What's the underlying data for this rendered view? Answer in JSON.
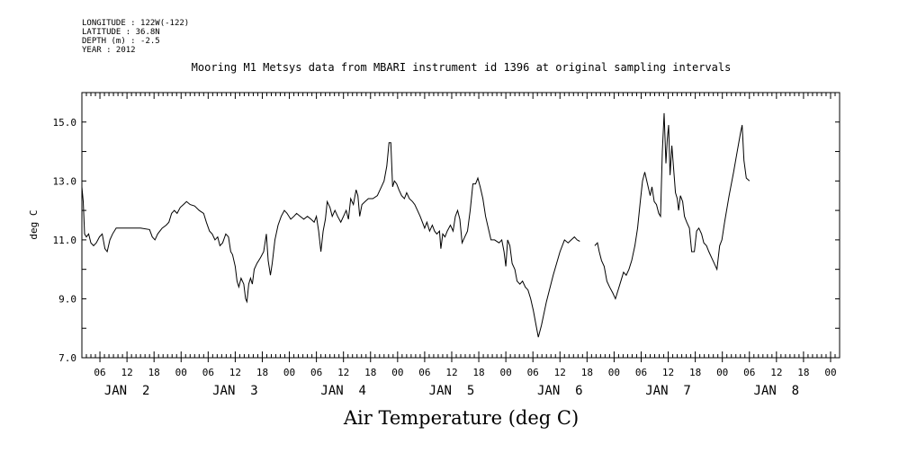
{
  "meta": {
    "longitude": "LONGITUDE : 122W(-122)",
    "latitude": "LATITUDE : 36.8N",
    "depth": "DEPTH (m) : -2.5",
    "year": "YEAR : 2012"
  },
  "chart_data": {
    "type": "line",
    "title": "Mooring M1 Metsys data from MBARI instrument id 1396 at original sampling intervals",
    "xlabel": "Air Temperature (deg C)",
    "ylabel": "deg C",
    "ylim": [
      7.0,
      16.0
    ],
    "xlim_hours": [
      2,
      170
    ],
    "yticks": [
      "7.0",
      "9.0",
      "11.0",
      "13.0",
      "15.0"
    ],
    "xtick_hour_labels": [
      "06",
      "12",
      "18",
      "00",
      "06",
      "12",
      "18",
      "00",
      "06",
      "12",
      "18",
      "00",
      "06",
      "12",
      "18",
      "00",
      "06",
      "12",
      "18",
      "00",
      "06",
      "12",
      "18",
      "00",
      "06",
      "12",
      "18",
      "00"
    ],
    "day_labels": [
      "JAN  2",
      "JAN  3",
      "JAN  4",
      "JAN  5",
      "JAN  6",
      "JAN  7",
      "JAN  8"
    ],
    "series": [
      {
        "segments": [
          [
            [
              2.0,
              12.8
            ],
            [
              2.3,
              12.3
            ],
            [
              2.6,
              11.2
            ],
            [
              3.0,
              11.1
            ],
            [
              3.5,
              11.2
            ],
            [
              4.0,
              10.9
            ],
            [
              4.6,
              10.8
            ],
            [
              5.2,
              10.9
            ],
            [
              5.9,
              11.1
            ],
            [
              6.5,
              11.2
            ],
            [
              7.1,
              10.7
            ],
            [
              7.6,
              10.6
            ],
            [
              8.2,
              11.0
            ],
            [
              8.8,
              11.2
            ],
            [
              9.6,
              11.4
            ],
            [
              11.0,
              11.4
            ],
            [
              13.0,
              11.4
            ],
            [
              15.0,
              11.4
            ],
            [
              17.0,
              11.35
            ],
            [
              17.6,
              11.1
            ],
            [
              18.2,
              11.0
            ],
            [
              18.8,
              11.2
            ],
            [
              19.8,
              11.4
            ],
            [
              20.7,
              11.5
            ],
            [
              21.3,
              11.6
            ],
            [
              21.9,
              11.9
            ],
            [
              22.5,
              12.0
            ],
            [
              23.1,
              11.9
            ],
            [
              23.8,
              12.1
            ],
            [
              24.5,
              12.2
            ],
            [
              25.2,
              12.3
            ],
            [
              26.0,
              12.2
            ],
            [
              27.0,
              12.15
            ],
            [
              28.0,
              12.0
            ],
            [
              29.0,
              11.9
            ],
            [
              29.6,
              11.6
            ],
            [
              30.3,
              11.3
            ],
            [
              30.9,
              11.2
            ],
            [
              31.5,
              11.0
            ],
            [
              32.1,
              11.1
            ],
            [
              32.6,
              10.8
            ],
            [
              33.2,
              10.9
            ],
            [
              33.9,
              11.2
            ],
            [
              34.5,
              11.1
            ],
            [
              35.0,
              10.6
            ],
            [
              35.4,
              10.5
            ],
            [
              36.0,
              10.1
            ],
            [
              36.4,
              9.6
            ],
            [
              36.8,
              9.4
            ],
            [
              37.3,
              9.7
            ],
            [
              37.9,
              9.5
            ],
            [
              38.3,
              9.0
            ],
            [
              38.6,
              8.9
            ],
            [
              39.0,
              9.5
            ],
            [
              39.4,
              9.7
            ],
            [
              39.8,
              9.5
            ],
            [
              40.2,
              10.0
            ],
            [
              40.8,
              10.2
            ],
            [
              41.6,
              10.4
            ],
            [
              42.3,
              10.6
            ],
            [
              42.9,
              11.2
            ],
            [
              43.3,
              10.3
            ],
            [
              43.8,
              9.8
            ],
            [
              44.2,
              10.2
            ],
            [
              44.8,
              11.0
            ],
            [
              45.5,
              11.5
            ],
            [
              46.2,
              11.8
            ],
            [
              46.9,
              12.0
            ],
            [
              47.5,
              11.9
            ],
            [
              48.3,
              11.7
            ],
            [
              49.0,
              11.8
            ],
            [
              49.6,
              11.9
            ],
            [
              50.4,
              11.8
            ],
            [
              51.2,
              11.7
            ],
            [
              52.0,
              11.8
            ],
            [
              52.8,
              11.7
            ],
            [
              53.5,
              11.6
            ],
            [
              54.0,
              11.8
            ],
            [
              54.5,
              11.3
            ],
            [
              55.0,
              10.6
            ],
            [
              55.5,
              11.3
            ],
            [
              56.0,
              11.7
            ],
            [
              56.4,
              12.3
            ],
            [
              57.0,
              12.1
            ],
            [
              57.5,
              11.8
            ],
            [
              58.1,
              12.0
            ],
            [
              58.7,
              11.8
            ],
            [
              59.4,
              11.6
            ],
            [
              60.0,
              11.8
            ],
            [
              60.6,
              12.0
            ],
            [
              61.1,
              11.7
            ],
            [
              61.6,
              12.4
            ],
            [
              62.2,
              12.2
            ],
            [
              62.8,
              12.7
            ],
            [
              63.2,
              12.5
            ],
            [
              63.6,
              11.8
            ],
            [
              64.1,
              12.2
            ],
            [
              64.8,
              12.3
            ],
            [
              65.5,
              12.4
            ],
            [
              66.5,
              12.4
            ],
            [
              67.5,
              12.5
            ],
            [
              68.4,
              12.8
            ],
            [
              69.0,
              13.0
            ],
            [
              69.6,
              13.5
            ],
            [
              70.1,
              14.3
            ],
            [
              70.5,
              14.3
            ],
            [
              70.9,
              12.8
            ],
            [
              71.3,
              13.0
            ],
            [
              71.8,
              12.9
            ],
            [
              72.3,
              12.7
            ],
            [
              72.9,
              12.5
            ],
            [
              73.5,
              12.4
            ],
            [
              74.0,
              12.6
            ],
            [
              74.6,
              12.4
            ],
            [
              75.3,
              12.3
            ],
            [
              75.8,
              12.2
            ],
            [
              76.4,
              12.0
            ],
            [
              77.0,
              11.8
            ],
            [
              77.5,
              11.6
            ],
            [
              78.0,
              11.4
            ],
            [
              78.5,
              11.6
            ],
            [
              79.1,
              11.3
            ],
            [
              79.7,
              11.5
            ],
            [
              80.2,
              11.3
            ],
            [
              80.7,
              11.2
            ],
            [
              81.3,
              11.3
            ],
            [
              81.6,
              10.7
            ],
            [
              82.0,
              11.2
            ],
            [
              82.5,
              11.1
            ],
            [
              83.0,
              11.3
            ],
            [
              83.7,
              11.5
            ],
            [
              84.3,
              11.3
            ],
            [
              84.8,
              11.8
            ],
            [
              85.3,
              12.0
            ],
            [
              85.8,
              11.7
            ],
            [
              86.3,
              10.9
            ],
            [
              86.9,
              11.1
            ],
            [
              87.5,
              11.3
            ],
            [
              88.1,
              12.0
            ],
            [
              88.7,
              12.9
            ],
            [
              89.3,
              12.9
            ],
            [
              89.8,
              13.1
            ],
            [
              90.3,
              12.8
            ],
            [
              90.9,
              12.4
            ],
            [
              91.5,
              11.8
            ],
            [
              92.1,
              11.4
            ],
            [
              92.7,
              11.0
            ],
            [
              93.5,
              11.0
            ],
            [
              94.5,
              10.9
            ],
            [
              95.1,
              11.0
            ],
            [
              95.6,
              10.6
            ],
            [
              96.0,
              10.1
            ],
            [
              96.4,
              11.0
            ],
            [
              96.9,
              10.8
            ],
            [
              97.4,
              10.2
            ],
            [
              98.0,
              10.0
            ],
            [
              98.5,
              9.6
            ],
            [
              99.1,
              9.5
            ],
            [
              99.7,
              9.6
            ],
            [
              100.3,
              9.4
            ],
            [
              100.9,
              9.3
            ],
            [
              101.5,
              9.0
            ],
            [
              102.1,
              8.6
            ],
            [
              102.7,
              8.1
            ],
            [
              103.2,
              7.7
            ],
            [
              103.9,
              8.1
            ],
            [
              105.0,
              8.9
            ],
            [
              106.5,
              9.8
            ],
            [
              108.0,
              10.6
            ],
            [
              109.0,
              11.0
            ],
            [
              109.8,
              10.9
            ],
            [
              110.5,
              11.0
            ],
            [
              111.2,
              11.1
            ],
            [
              111.8,
              11.0
            ],
            [
              112.4,
              10.95
            ]
          ],
          [
            [
              115.7,
              10.8
            ],
            [
              116.3,
              10.9
            ],
            [
              116.7,
              10.6
            ],
            [
              117.2,
              10.3
            ],
            [
              117.8,
              10.1
            ],
            [
              118.4,
              9.6
            ],
            [
              119.0,
              9.4
            ],
            [
              119.7,
              9.2
            ],
            [
              120.3,
              9.0
            ],
            [
              120.9,
              9.3
            ],
            [
              121.5,
              9.6
            ],
            [
              122.1,
              9.9
            ],
            [
              122.7,
              9.8
            ],
            [
              123.3,
              10.0
            ],
            [
              123.9,
              10.3
            ],
            [
              124.6,
              10.8
            ],
            [
              125.2,
              11.4
            ],
            [
              125.8,
              12.3
            ],
            [
              126.3,
              13.0
            ],
            [
              126.8,
              13.3
            ],
            [
              127.4,
              12.9
            ],
            [
              128.0,
              12.5
            ],
            [
              128.4,
              12.8
            ],
            [
              128.9,
              12.3
            ],
            [
              129.4,
              12.2
            ],
            [
              129.9,
              11.9
            ],
            [
              130.3,
              11.8
            ],
            [
              130.7,
              14.0
            ],
            [
              131.1,
              15.3
            ],
            [
              131.5,
              13.6
            ],
            [
              131.8,
              14.4
            ],
            [
              132.1,
              14.9
            ],
            [
              132.4,
              13.2
            ],
            [
              132.8,
              14.2
            ],
            [
              133.2,
              13.4
            ],
            [
              133.6,
              12.6
            ],
            [
              134.0,
              12.4
            ],
            [
              134.3,
              12.0
            ],
            [
              134.7,
              12.5
            ],
            [
              135.2,
              12.3
            ],
            [
              135.6,
              11.8
            ],
            [
              136.1,
              11.6
            ],
            [
              136.7,
              11.4
            ],
            [
              137.2,
              10.6
            ],
            [
              137.8,
              10.6
            ],
            [
              138.3,
              11.3
            ],
            [
              138.8,
              11.4
            ],
            [
              139.4,
              11.2
            ],
            [
              139.9,
              10.9
            ],
            [
              140.5,
              10.8
            ],
            [
              141.0,
              10.6
            ],
            [
              141.6,
              10.4
            ],
            [
              142.2,
              10.2
            ],
            [
              142.8,
              10.0
            ],
            [
              143.4,
              10.8
            ],
            [
              143.9,
              11.0
            ],
            [
              144.5,
              11.6
            ],
            [
              145.5,
              12.5
            ],
            [
              146.5,
              13.3
            ],
            [
              147.3,
              14.0
            ],
            [
              148.0,
              14.6
            ],
            [
              148.4,
              14.9
            ],
            [
              148.8,
              13.7
            ],
            [
              149.3,
              13.1
            ],
            [
              150.0,
              13.0
            ]
          ]
        ]
      }
    ]
  }
}
